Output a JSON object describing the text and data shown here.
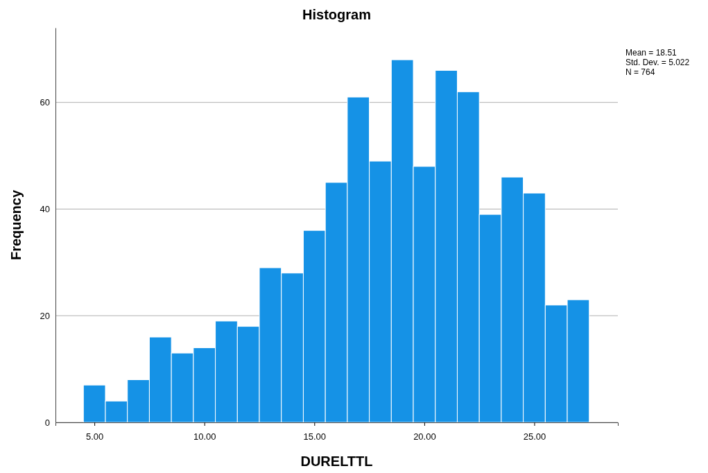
{
  "chart_data": {
    "type": "histogram",
    "title": "Histogram",
    "xlabel": "DURELTTL",
    "ylabel": "Frequency",
    "bins": [
      4.5,
      5.5,
      6.5,
      7.5,
      8.5,
      9.5,
      10.5,
      11.5,
      12.5,
      13.5,
      14.5,
      15.5,
      16.5,
      17.5,
      18.5,
      19.5,
      20.5,
      21.5,
      22.5,
      23.5,
      24.5,
      25.5,
      26.5,
      27.5
    ],
    "values": [
      7,
      4,
      8,
      16,
      13,
      14,
      19,
      18,
      29,
      28,
      36,
      45,
      61,
      49,
      68,
      48,
      66,
      62,
      39,
      46,
      43,
      22,
      23
    ],
    "color": "#1592e6",
    "xlim": [
      3.23,
      28.8
    ],
    "xticks": [
      {
        "value": 5,
        "label": "5.00"
      },
      {
        "value": 10,
        "label": "10.00"
      },
      {
        "value": 15,
        "label": "15.00"
      },
      {
        "value": 20,
        "label": "20.00"
      },
      {
        "value": 25,
        "label": "25.00"
      }
    ],
    "ylim": [
      0,
      74
    ],
    "yticks": [
      0,
      20,
      40,
      60
    ],
    "grid": "y",
    "annotations": [
      "Mean = 18.51",
      "Std. Dev. = 5.022",
      "N = 764"
    ]
  }
}
